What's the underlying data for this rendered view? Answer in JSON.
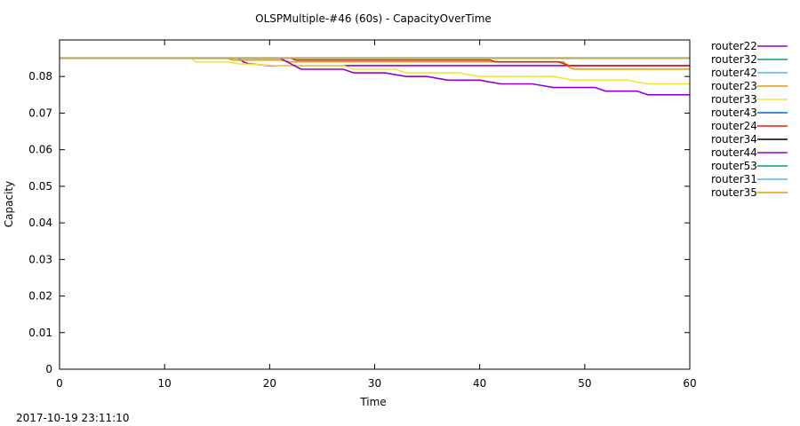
{
  "footer": {
    "timestamp": "2017-10-19 23:11:10"
  },
  "chart_data": {
    "type": "line",
    "title": "OLSPMultiple-#46 (60s) - CapacityOverTime",
    "xlabel": "Time",
    "ylabel": "Capacity",
    "xlim": [
      0,
      60
    ],
    "ylim": [
      0,
      0.09
    ],
    "xticks": [
      0,
      10,
      20,
      30,
      40,
      50,
      60
    ],
    "yticks": [
      0,
      0.01,
      0.02,
      0.03,
      0.04,
      0.05,
      0.06,
      0.07,
      0.08
    ],
    "ytick_labels": [
      "0",
      "0.01",
      "0.02",
      "0.03",
      "0.04",
      "0.05",
      "0.06",
      "0.07",
      "0.08"
    ],
    "grid": false,
    "legend_position": "right-outside",
    "series": [
      {
        "name": "router22",
        "color": "#9400d3",
        "points": [
          [
            0,
            0.085
          ],
          [
            17,
            0.085
          ],
          [
            17.5,
            0.084
          ],
          [
            18,
            0.0835
          ],
          [
            20,
            0.083
          ],
          [
            60,
            0.083
          ]
        ]
      },
      {
        "name": "router32",
        "color": "#009e73",
        "points": [
          [
            0,
            0.085
          ],
          [
            60,
            0.085
          ]
        ]
      },
      {
        "name": "router42",
        "color": "#56b4e9",
        "points": [
          [
            0,
            0.085
          ],
          [
            60,
            0.085
          ]
        ]
      },
      {
        "name": "router23",
        "color": "#e69f00",
        "points": [
          [
            0,
            0.085
          ],
          [
            16,
            0.085
          ],
          [
            16.5,
            0.0845
          ],
          [
            21,
            0.0845
          ],
          [
            22,
            0.084
          ],
          [
            48,
            0.084
          ],
          [
            48.5,
            0.0825
          ],
          [
            49,
            0.082
          ],
          [
            60,
            0.082
          ]
        ]
      },
      {
        "name": "router33",
        "color": "#f0e442",
        "points": [
          [
            0,
            0.085
          ],
          [
            12.5,
            0.085
          ],
          [
            13,
            0.084
          ],
          [
            16,
            0.084
          ],
          [
            17,
            0.0835
          ],
          [
            21,
            0.083
          ],
          [
            27,
            0.083
          ],
          [
            28,
            0.082
          ],
          [
            32,
            0.082
          ],
          [
            33,
            0.081
          ],
          [
            38,
            0.081
          ],
          [
            39,
            0.0805
          ],
          [
            40,
            0.08
          ],
          [
            47,
            0.08
          ],
          [
            48,
            0.0795
          ],
          [
            49,
            0.079
          ],
          [
            54,
            0.079
          ],
          [
            55,
            0.0785
          ],
          [
            56,
            0.078
          ],
          [
            60,
            0.078
          ]
        ]
      },
      {
        "name": "router43",
        "color": "#0072b2",
        "points": [
          [
            0,
            0.085
          ],
          [
            60,
            0.085
          ]
        ]
      },
      {
        "name": "router24",
        "color": "#e51e10",
        "points": [
          [
            0,
            0.085
          ],
          [
            22,
            0.085
          ],
          [
            22.5,
            0.0845
          ],
          [
            41,
            0.0845
          ],
          [
            41.5,
            0.084
          ],
          [
            47.5,
            0.084
          ],
          [
            48.5,
            0.083
          ],
          [
            60,
            0.083
          ]
        ]
      },
      {
        "name": "router34",
        "color": "#000000",
        "points": [
          [
            0,
            0.085
          ],
          [
            60,
            0.085
          ]
        ]
      },
      {
        "name": "router44",
        "color": "#9400d3",
        "points": [
          [
            0,
            0.085
          ],
          [
            21,
            0.085
          ],
          [
            22,
            0.0835
          ],
          [
            23,
            0.082
          ],
          [
            27,
            0.082
          ],
          [
            28,
            0.081
          ],
          [
            31,
            0.081
          ],
          [
            32,
            0.0805
          ],
          [
            33,
            0.08
          ],
          [
            35,
            0.08
          ],
          [
            36,
            0.0795
          ],
          [
            37,
            0.079
          ],
          [
            40,
            0.079
          ],
          [
            41,
            0.0785
          ],
          [
            42,
            0.078
          ],
          [
            45,
            0.078
          ],
          [
            46,
            0.0775
          ],
          [
            47,
            0.077
          ],
          [
            51,
            0.077
          ],
          [
            52,
            0.076
          ],
          [
            55,
            0.076
          ],
          [
            56,
            0.075
          ],
          [
            60,
            0.075
          ]
        ]
      },
      {
        "name": "router53",
        "color": "#009e73",
        "points": [
          [
            0,
            0.085
          ],
          [
            60,
            0.085
          ]
        ]
      },
      {
        "name": "router31",
        "color": "#56b4e9",
        "points": [
          [
            0,
            0.085
          ],
          [
            60,
            0.085
          ]
        ]
      },
      {
        "name": "router35",
        "color": "#e69f00",
        "points": [
          [
            0,
            0.085
          ],
          [
            60,
            0.085
          ]
        ]
      }
    ]
  }
}
